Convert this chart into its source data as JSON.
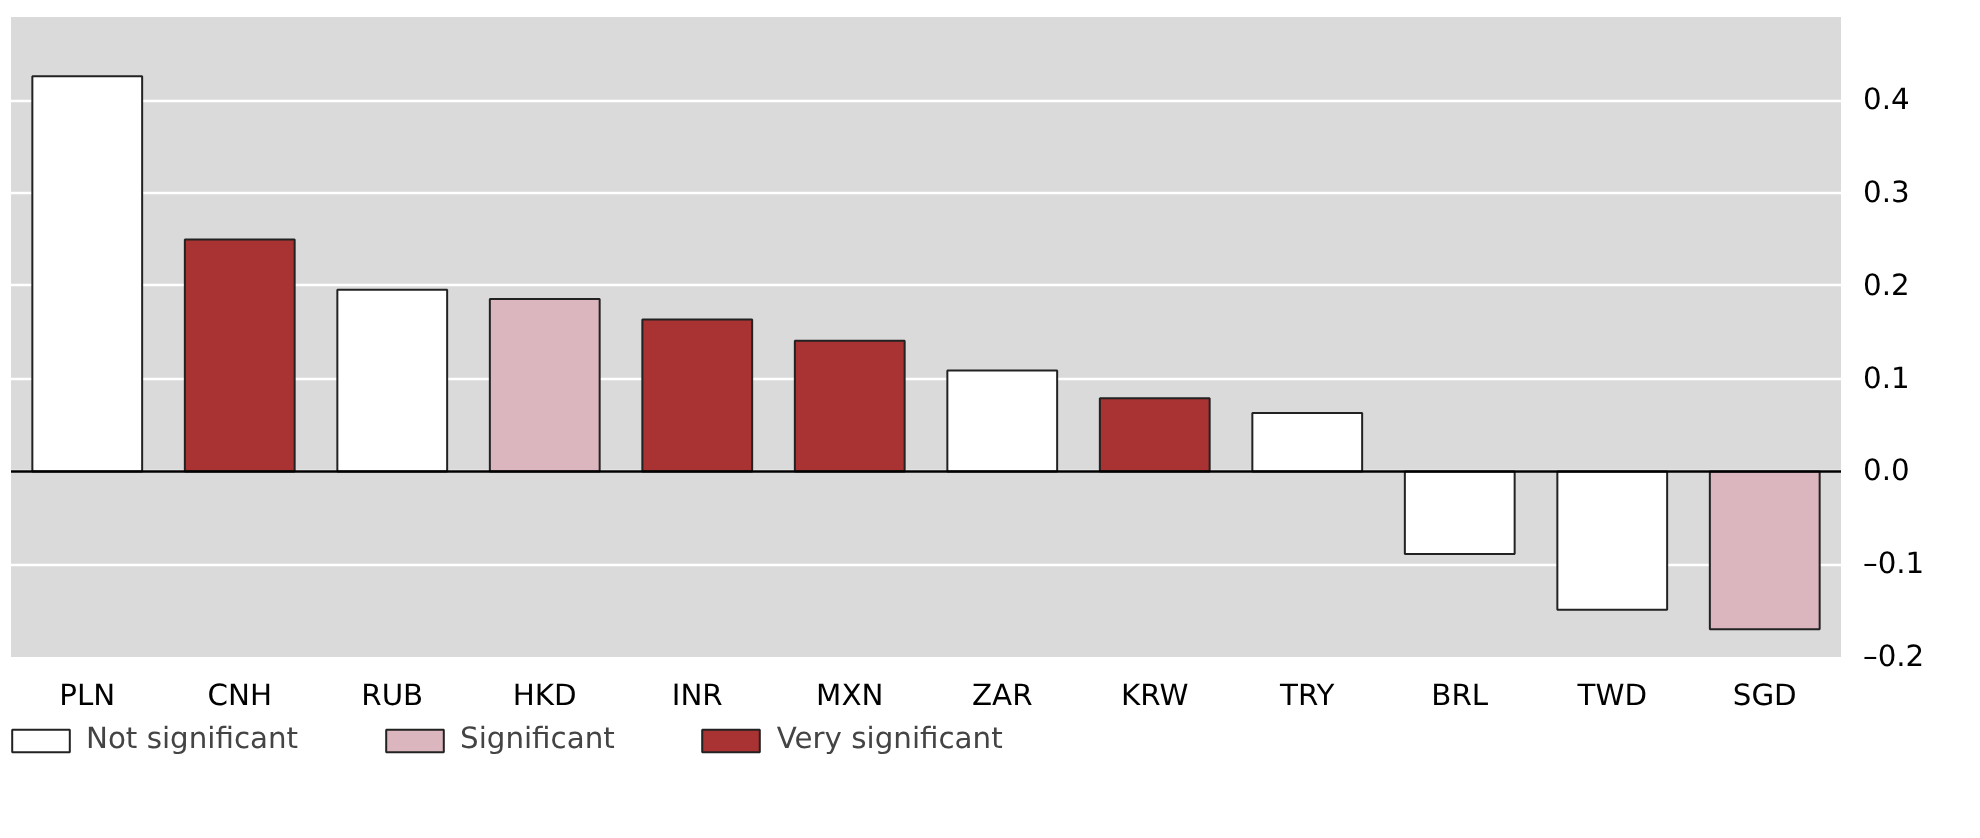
{
  "chart_data": {
    "type": "bar",
    "categories": [
      "PLN",
      "CNH",
      "RUB",
      "HKD",
      "INR",
      "MXN",
      "ZAR",
      "KRW",
      "TRY",
      "BRL",
      "TWD",
      "SGD"
    ],
    "series": [
      {
        "name": "Not significant",
        "color": "#ffffff",
        "values": [
          0.426,
          null,
          0.196,
          null,
          null,
          null,
          0.109,
          null,
          0.063,
          -0.089,
          -0.149,
          null
        ]
      },
      {
        "name": "Significant",
        "color": "#dbb6bf",
        "values": [
          null,
          null,
          null,
          0.186,
          null,
          null,
          null,
          null,
          null,
          null,
          null,
          -0.17
        ]
      },
      {
        "name": "Very significant",
        "color": "#a93232",
        "values": [
          null,
          0.25,
          null,
          null,
          0.164,
          0.141,
          null,
          0.079,
          null,
          null,
          null,
          null
        ]
      }
    ],
    "ylim": [
      -0.2,
      0.49
    ],
    "yticks": [
      {
        "value": -0.2,
        "label": "–0.2"
      },
      {
        "value": -0.1,
        "label": "–0.1"
      },
      {
        "value": 0,
        "label": "0.0"
      },
      {
        "value": 0.1,
        "label": "0.1"
      },
      {
        "value": 0.2,
        "label": "0.2"
      },
      {
        "value": 0.3,
        "label": "0.3"
      },
      {
        "value": 0.4,
        "label": "0.4"
      }
    ],
    "grid": "y",
    "legend": "bottom"
  }
}
